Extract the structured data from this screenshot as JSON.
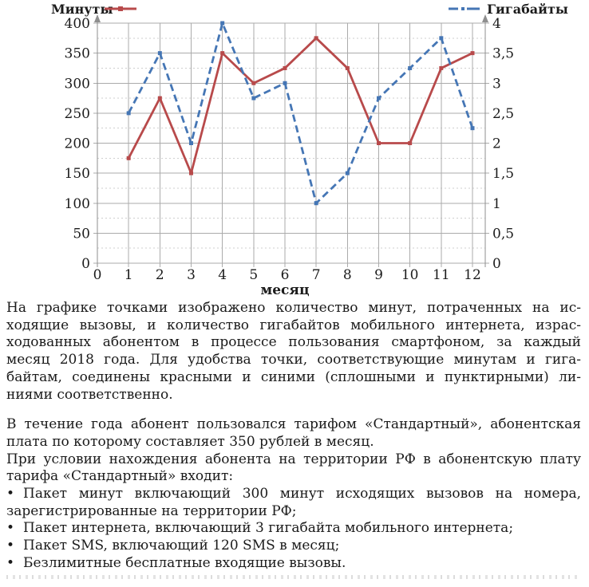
{
  "chart_data": {
    "type": "line",
    "x": [
      1,
      2,
      3,
      4,
      5,
      6,
      7,
      8,
      9,
      10,
      11,
      12
    ],
    "series": [
      {
        "name": "Минуты",
        "axis": "left",
        "color": "#b84a4b",
        "style": "solid",
        "values": [
          175,
          275,
          150,
          350,
          300,
          325,
          375,
          325,
          200,
          200,
          325,
          350
        ]
      },
      {
        "name": "Гигабайты",
        "axis": "right",
        "color": "#4576b5",
        "style": "dashed",
        "values": [
          2.5,
          3.5,
          2,
          4,
          2.75,
          3,
          1,
          1.5,
          2.75,
          3.25,
          3.75,
          2.25
        ]
      }
    ],
    "left_axis": {
      "min": 0,
      "max": 400,
      "step": 50,
      "labels": [
        "0",
        "50",
        "100",
        "150",
        "200",
        "250",
        "300",
        "350",
        "400"
      ]
    },
    "right_axis": {
      "min": 0,
      "max": 4,
      "step": 0.5,
      "labels": [
        "0",
        "0,5",
        "1",
        "1,5",
        "2",
        "2,5",
        "3",
        "3,5",
        "4"
      ]
    },
    "x_axis": {
      "labels": [
        "0",
        "1",
        "2",
        "3",
        "4",
        "5",
        "6",
        "7",
        "8",
        "9",
        "10",
        "11",
        "12"
      ],
      "title": "месяц"
    },
    "grid": {
      "major_solid_every": 50,
      "minor_dotted_every": 25,
      "vertical_every": 1
    },
    "legend_position": "top",
    "colors": {
      "grid": "#ababab",
      "minor_grid": "#cfcfcf",
      "axis": "#8f8f8f",
      "label": "#1c1c1c"
    }
  },
  "body": {
    "bullet_char": "•",
    "blocks": [
      {
        "type": "p",
        "gap_before": false,
        "lines": [
          "На графике точками изображено количество минут, потраченных на ис-",
          "ходящие вызовы, и количество гигабайтов мобильного интернета, израс-",
          "ходованных абонентом в процессе пользования смартфоном, за каждый",
          "месяц 2018 года. Для удобства точки, соответствующие минутам и гига-",
          "байтам, соединены красными и синими (сплошными и пунктирными) ли-",
          "ниями соответственно."
        ]
      },
      {
        "type": "p",
        "gap_before": true,
        "lines": [
          "В течение года абонент пользовался тарифом «Стандартный», абонентская",
          "плата по которому составляет 350 рублей в месяц."
        ]
      },
      {
        "type": "p",
        "gap_before": false,
        "lines": [
          "При условии нахождения абонента на территории РФ в абонентскую плату",
          "тарифа «Стандартный» входит:"
        ]
      },
      {
        "type": "bullet",
        "gap_before": false,
        "lines": [
          "Пакет минут включающий 300 минут исходящих вызовов на номера,",
          "зарегистрированные на территории РФ;"
        ]
      },
      {
        "type": "bullet",
        "gap_before": false,
        "lines": [
          "Пакет интернета, включающий 3 гигабайта мобильного интернета;"
        ]
      },
      {
        "type": "bullet",
        "gap_before": false,
        "lines": [
          "Пакет SMS, включающий 120 SMS в месяц;"
        ]
      },
      {
        "type": "bullet",
        "gap_before": false,
        "lines": [
          "Безлимитные бесплатные входящие вызовы."
        ]
      }
    ]
  }
}
